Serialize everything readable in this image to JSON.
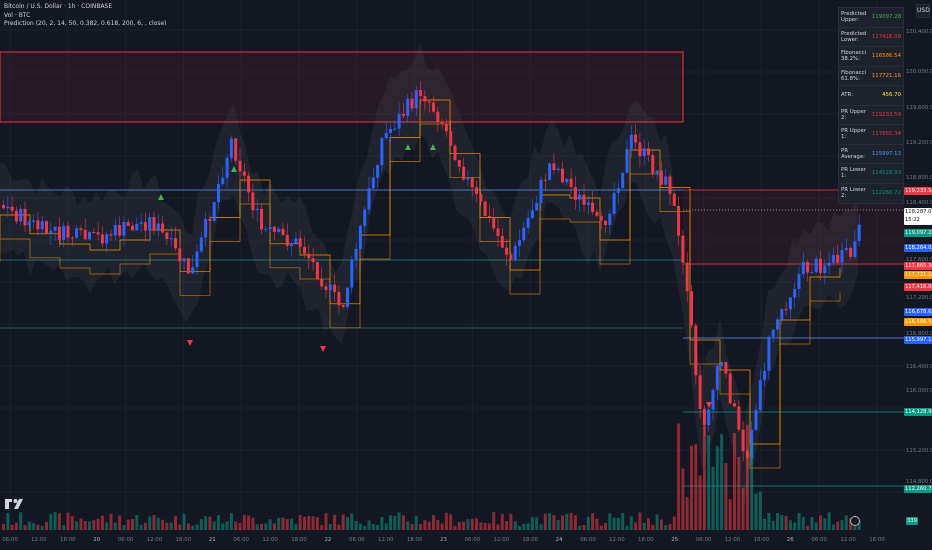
{
  "legend": {
    "symbol": "Bitcoin / U.S. Dollar · 1h · COINBASE",
    "volume": "Vol · BTC",
    "indicator": "Prediction (20, 2, 14, 50, 0.382, 0.618, 200, 6, , close)"
  },
  "top_badge": "USD",
  "price_axis_ticks": [
    "120,400.00",
    "120,000.00",
    "119,600.00",
    "119,200.00",
    "118,800.00",
    "118,400.00",
    "117,600.00",
    "117,200.00",
    "116,800.00",
    "116,400.00",
    "116,000.00",
    "115,600.00",
    "115,200.00",
    "114,800.00"
  ],
  "price_tags": [
    {
      "label": "119,233.54",
      "color": "#f23645"
    },
    {
      "label": "118,287.08",
      "sub": "15:22",
      "color": "#ffffff",
      "text_color": "#131722"
    },
    {
      "label": "119,097.28",
      "color": "#089981"
    },
    {
      "label": "118,264.05",
      "color": "#2962ff"
    },
    {
      "label": "117,865.34",
      "color": "#f23645"
    },
    {
      "label": "117,721.16",
      "color": "#ff9800"
    },
    {
      "label": "117,416.08",
      "color": "#f23645"
    },
    {
      "label": "116,678.62",
      "color": "#2962ff"
    },
    {
      "label": "116,586.54",
      "color": "#ff9800"
    },
    {
      "label": "115,997.13",
      "color": "#2962ff"
    },
    {
      "label": "114,128.93",
      "color": "#089981"
    },
    {
      "label": "112,260.72",
      "color": "#089981"
    },
    {
      "label": "339",
      "color": "#089981"
    }
  ],
  "time_axis": [
    "06:00",
    "12:00",
    "18:00",
    "20",
    "06:00",
    "12:00",
    "18:00",
    "21",
    "06:00",
    "12:00",
    "18:00",
    "22",
    "06:00",
    "12:00",
    "18:00",
    "23",
    "06:00",
    "12:00",
    "18:00",
    "24",
    "06:00",
    "12:00",
    "18:00",
    "25",
    "06:00",
    "12:00",
    "18:00",
    "26",
    "06:00",
    "12:00",
    "18:00"
  ],
  "info_table": [
    {
      "key": "Predicted Upper:",
      "value": "119097.28",
      "color": "#4caf50"
    },
    {
      "key": "Predicted Lower:",
      "value": "117416.08",
      "color": "#f23645"
    },
    {
      "key": "Fibonacci 38.2%:",
      "value": "116586.54",
      "color": "#ff9800"
    },
    {
      "key": "Fibonacci 61.8%:",
      "value": "117721.16",
      "color": "#ff9800"
    },
    {
      "key": "ATR:",
      "value": "456.70",
      "color": "#ffeb3b"
    },
    {
      "key": "PR Upper 2:",
      "value": "119233.54",
      "color": "#f23645"
    },
    {
      "key": "PR Upper 1:",
      "value": "117865.34",
      "color": "#f23645"
    },
    {
      "key": "PR Average:",
      "value": "115997.13",
      "color": "#5b9cf6"
    },
    {
      "key": "PR Lower 1:",
      "value": "114128.93",
      "color": "#089981"
    },
    {
      "key": "PR Lower 2:",
      "value": "112260.72",
      "color": "#089981"
    }
  ],
  "colors": {
    "up": "#2962ff",
    "down": "#f23645",
    "bg": "#131722",
    "grid": "#1e222d"
  }
}
